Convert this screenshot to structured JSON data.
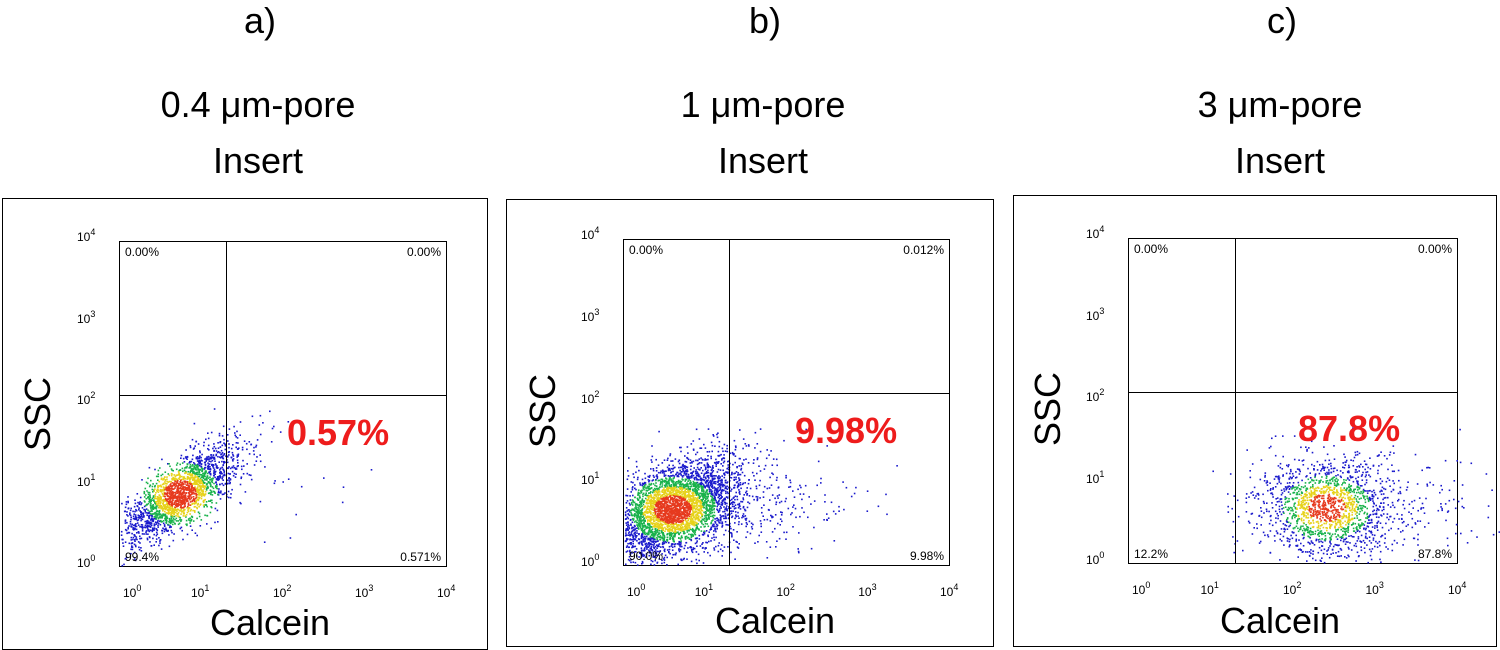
{
  "chart_data": [
    {
      "type": "scatter",
      "panel_label": "a)",
      "title_line1": "0.4 μm-pore",
      "title_line2": "Insert",
      "xlabel": "Calcein",
      "ylabel": "SSC",
      "xscale": "log",
      "yscale": "log",
      "xlim": [
        1,
        10000
      ],
      "ylim": [
        1,
        10000
      ],
      "x_ticks": [
        "10",
        "10",
        "10",
        "10",
        "10"
      ],
      "x_tick_exp": [
        "0",
        "1",
        "2",
        "3",
        "4"
      ],
      "y_ticks": [
        "10",
        "10",
        "10",
        "10",
        "10"
      ],
      "y_tick_exp": [
        "0",
        "1",
        "2",
        "3",
        "4"
      ],
      "quadrants": {
        "upper_left": "0.00%",
        "upper_right": "0.00%",
        "lower_left": "99.4%",
        "lower_right": "0.571%"
      },
      "highlight": "0.57%",
      "gate": {
        "x": 20,
        "y": 130
      },
      "population": {
        "center_x": 5.5,
        "center_y": 8,
        "spread_x_decades": 0.35,
        "spread_y_decades": 0.3,
        "correlation": 0.75,
        "n": 2200,
        "tail_fraction": 0.02
      }
    },
    {
      "type": "scatter",
      "panel_label": "b)",
      "title_line1": "1 μm-pore",
      "title_line2": "Insert",
      "xlabel": "Calcein",
      "ylabel": "SSC",
      "xscale": "log",
      "yscale": "log",
      "xlim": [
        1,
        10000
      ],
      "ylim": [
        1,
        10000
      ],
      "x_ticks": [
        "10",
        "10",
        "10",
        "10",
        "10"
      ],
      "x_tick_exp": [
        "0",
        "1",
        "2",
        "3",
        "4"
      ],
      "y_ticks": [
        "10",
        "10",
        "10",
        "10",
        "10"
      ],
      "y_tick_exp": [
        "0",
        "1",
        "2",
        "3",
        "4"
      ],
      "quadrants": {
        "upper_left": "0.00%",
        "upper_right": "0.012%",
        "lower_left": "90.0%",
        "lower_right": "9.98%"
      },
      "highlight": "9.98%",
      "gate": {
        "x": 20,
        "y": 130
      },
      "population": {
        "center_x": 4,
        "center_y": 5,
        "spread_x_decades": 0.4,
        "spread_y_decades": 0.3,
        "correlation": 0.45,
        "n": 4200,
        "tail_fraction": 0.1
      }
    },
    {
      "type": "scatter",
      "panel_label": "c)",
      "title_line1": "3 μm-pore",
      "title_line2": "Insert",
      "xlabel": "Calcein",
      "ylabel": "SSC",
      "xscale": "log",
      "yscale": "log",
      "xlim": [
        1,
        10000
      ],
      "ylim": [
        1,
        10000
      ],
      "x_ticks": [
        "10",
        "10",
        "10",
        "10",
        "10"
      ],
      "x_tick_exp": [
        "0",
        "1",
        "2",
        "3",
        "4"
      ],
      "y_ticks": [
        "10",
        "10",
        "10",
        "10",
        "10"
      ],
      "y_tick_exp": [
        "0",
        "1",
        "2",
        "3",
        "4"
      ],
      "quadrants": {
        "upper_left": "0.00%",
        "upper_right": "0.00%",
        "lower_left": "12.2%",
        "lower_right": "87.8%"
      },
      "highlight": "87.8%",
      "gate": {
        "x": 20,
        "y": 130
      },
      "population": {
        "center_x": 250,
        "center_y": 5,
        "spread_x_decades": 0.4,
        "spread_y_decades": 0.3,
        "correlation": 0.0,
        "n": 1800,
        "tail_fraction": 0.12
      }
    }
  ],
  "colors": {
    "dot_low": "#1a1acc",
    "dot_mid": "#19b24b",
    "dot_high": "#e7d21a",
    "dot_peak": "#e63a1e",
    "highlight": "#ee1c1c"
  }
}
